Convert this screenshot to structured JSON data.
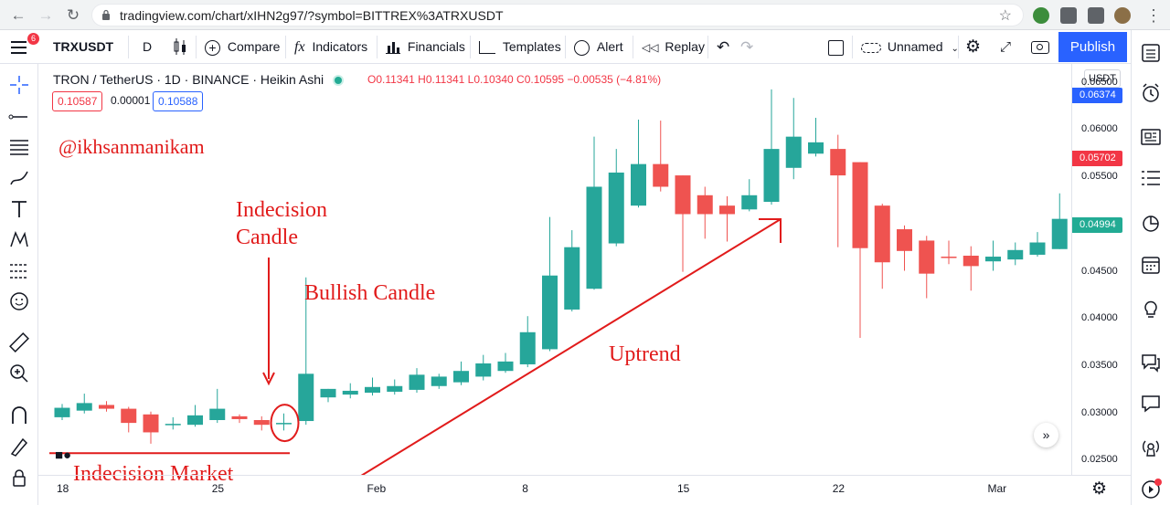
{
  "browser": {
    "url": "tradingview.com/chart/xIHN2g97/?symbol=BITTREX%3ATRXUSDT"
  },
  "toolbar": {
    "symbol": "TRXUSDT",
    "interval": "D",
    "compare": "Compare",
    "indicators": "Indicators",
    "financials": "Financials",
    "templates": "Templates",
    "alert": "Alert",
    "replay": "Replay",
    "layout_name": "Unnamed",
    "publish": "Publish",
    "menu_badge": "6"
  },
  "legend": {
    "title": "TRON / TetherUS · 1D · BINANCE · Heikin Ashi",
    "ohlc": "O0.11341 H0.11341 L0.10340 C0.10595 −0.00535 (−4.81%)",
    "sell_price": "0.10587",
    "spread": "0.00001",
    "buy_price": "0.10588"
  },
  "annotations": {
    "handle": "@ikhsanmanikam",
    "indecision_candle_1": "Indecision",
    "indecision_candle_2": "Candle",
    "bullish_candle": "Bullish Candle",
    "uptrend": "Uptrend",
    "indecision_market": "Indecision Market"
  },
  "price_axis": {
    "currency": "USDT",
    "labels": [
      "0.06500",
      "0.06000",
      "0.05500",
      "0.05000",
      "0.04500",
      "0.04000",
      "0.03500",
      "0.03000",
      "0.02500"
    ],
    "tags": [
      {
        "text": "0.06374",
        "color": "#2962ff"
      },
      {
        "text": "0.05702",
        "color": "#f23645"
      },
      {
        "text": "0.04994",
        "color": "#22ab94"
      }
    ]
  },
  "time_axis": {
    "labels": [
      "18",
      "25",
      "Feb",
      "8",
      "15",
      "22",
      "Mar"
    ]
  },
  "colors": {
    "up": "#26a69a",
    "down": "#ef5350",
    "annotation": "#e11b1b"
  },
  "chart_data": {
    "type": "candlestick",
    "style": "Heikin Ashi",
    "ylim": [
      0.0235,
      0.067
    ],
    "candles": [
      {
        "o": 0.0296,
        "h": 0.031,
        "l": 0.0293,
        "c": 0.0306
      },
      {
        "o": 0.0303,
        "h": 0.0321,
        "l": 0.03,
        "c": 0.0311
      },
      {
        "o": 0.0309,
        "h": 0.0313,
        "l": 0.0302,
        "c": 0.0305
      },
      {
        "o": 0.0305,
        "h": 0.0307,
        "l": 0.028,
        "c": 0.029
      },
      {
        "o": 0.0299,
        "h": 0.0302,
        "l": 0.0268,
        "c": 0.028
      },
      {
        "o": 0.0289,
        "h": 0.0296,
        "l": 0.0283,
        "c": 0.0289
      },
      {
        "o": 0.0288,
        "h": 0.0309,
        "l": 0.0286,
        "c": 0.0298
      },
      {
        "o": 0.0293,
        "h": 0.0326,
        "l": 0.029,
        "c": 0.0305
      },
      {
        "o": 0.0297,
        "h": 0.0299,
        "l": 0.029,
        "c": 0.0294
      },
      {
        "o": 0.0293,
        "h": 0.0297,
        "l": 0.0282,
        "c": 0.0288
      },
      {
        "o": 0.029,
        "h": 0.03,
        "l": 0.0282,
        "c": 0.029
      },
      {
        "o": 0.0292,
        "h": 0.0444,
        "l": 0.0288,
        "c": 0.0342
      },
      {
        "o": 0.0317,
        "h": 0.0326,
        "l": 0.0312,
        "c": 0.0326
      },
      {
        "o": 0.032,
        "h": 0.0332,
        "l": 0.0316,
        "c": 0.0324
      },
      {
        "o": 0.0322,
        "h": 0.0338,
        "l": 0.0319,
        "c": 0.0328
      },
      {
        "o": 0.0323,
        "h": 0.0336,
        "l": 0.032,
        "c": 0.0329
      },
      {
        "o": 0.0325,
        "h": 0.0348,
        "l": 0.0322,
        "c": 0.0341
      },
      {
        "o": 0.0329,
        "h": 0.0342,
        "l": 0.0326,
        "c": 0.0339
      },
      {
        "o": 0.0333,
        "h": 0.0355,
        "l": 0.033,
        "c": 0.0345
      },
      {
        "o": 0.0339,
        "h": 0.0362,
        "l": 0.0335,
        "c": 0.0353
      },
      {
        "o": 0.0345,
        "h": 0.0364,
        "l": 0.0343,
        "c": 0.0355
      },
      {
        "o": 0.0352,
        "h": 0.0403,
        "l": 0.0349,
        "c": 0.0386
      },
      {
        "o": 0.0368,
        "h": 0.0508,
        "l": 0.0366,
        "c": 0.0446
      },
      {
        "o": 0.041,
        "h": 0.0494,
        "l": 0.0408,
        "c": 0.0476
      },
      {
        "o": 0.0432,
        "h": 0.0593,
        "l": 0.0431,
        "c": 0.054
      },
      {
        "o": 0.048,
        "h": 0.058,
        "l": 0.0477,
        "c": 0.0555
      },
      {
        "o": 0.052,
        "h": 0.0611,
        "l": 0.0518,
        "c": 0.0564
      },
      {
        "o": 0.0564,
        "h": 0.061,
        "l": 0.0535,
        "c": 0.054
      },
      {
        "o": 0.0552,
        "h": 0.0552,
        "l": 0.045,
        "c": 0.0511
      },
      {
        "o": 0.0531,
        "h": 0.054,
        "l": 0.0485,
        "c": 0.0511
      },
      {
        "o": 0.052,
        "h": 0.053,
        "l": 0.0482,
        "c": 0.0511
      },
      {
        "o": 0.0516,
        "h": 0.0548,
        "l": 0.0514,
        "c": 0.0531
      },
      {
        "o": 0.0524,
        "h": 0.0643,
        "l": 0.0521,
        "c": 0.058
      },
      {
        "o": 0.056,
        "h": 0.0634,
        "l": 0.0548,
        "c": 0.0593
      },
      {
        "o": 0.0575,
        "h": 0.0613,
        "l": 0.0572,
        "c": 0.0587
      },
      {
        "o": 0.058,
        "h": 0.0595,
        "l": 0.0476,
        "c": 0.0552
      },
      {
        "o": 0.0566,
        "h": 0.0566,
        "l": 0.038,
        "c": 0.0475
      },
      {
        "o": 0.052,
        "h": 0.0522,
        "l": 0.0432,
        "c": 0.046
      },
      {
        "o": 0.0495,
        "h": 0.0499,
        "l": 0.0451,
        "c": 0.0472
      },
      {
        "o": 0.0483,
        "h": 0.0488,
        "l": 0.0422,
        "c": 0.0448
      },
      {
        "o": 0.0466,
        "h": 0.0483,
        "l": 0.0458,
        "c": 0.0465
      },
      {
        "o": 0.0467,
        "h": 0.0477,
        "l": 0.043,
        "c": 0.0456
      },
      {
        "o": 0.0461,
        "h": 0.0483,
        "l": 0.0451,
        "c": 0.0466
      },
      {
        "o": 0.0463,
        "h": 0.0481,
        "l": 0.0457,
        "c": 0.0473
      },
      {
        "o": 0.0468,
        "h": 0.0492,
        "l": 0.0466,
        "c": 0.0481
      },
      {
        "o": 0.0474,
        "h": 0.0533,
        "l": 0.0474,
        "c": 0.0506
      },
      {
        "o": 0.049,
        "h": 0.0512,
        "l": 0.0486,
        "c": 0.0506
      },
      {
        "o": 0.0498,
        "h": 0.0507,
        "l": 0.0492,
        "c": 0.0502
      }
    ]
  }
}
